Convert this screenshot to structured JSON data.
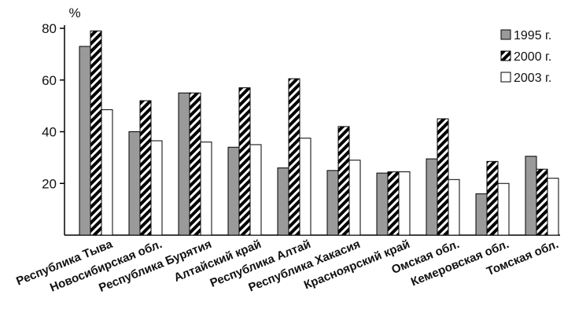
{
  "chart_data": {
    "type": "bar",
    "ylabel": "%",
    "ylim": [
      0,
      80
    ],
    "yticks": [
      20,
      40,
      60,
      80
    ],
    "grid": false,
    "legend_position": "top-right",
    "categories": [
      "Республика Тыва",
      "Новосибирская обл.",
      "Республика Бурятия",
      "Алтайский край",
      "Республика Алтай",
      "Республика Хакасия",
      "Красноярский край",
      "Омская обл.",
      "Кемеровская обл.",
      "Томская обл."
    ],
    "series": [
      {
        "name": "1995 г.",
        "color": "#9a9a9a",
        "pattern": "solid-gray",
        "values": [
          73,
          40,
          55,
          34,
          26,
          25,
          24,
          29.5,
          16,
          30.5
        ]
      },
      {
        "name": "2000 г.",
        "color": "#000000",
        "pattern": "diagonal-hatch",
        "values": [
          79,
          52,
          55,
          57,
          60.5,
          42,
          24.5,
          45,
          28.5,
          25.5
        ]
      },
      {
        "name": "2003 г.",
        "color": "#ffffff",
        "pattern": "white",
        "values": [
          48.5,
          36.5,
          36,
          35,
          37.5,
          29,
          24.5,
          21.5,
          20,
          22
        ]
      }
    ]
  }
}
